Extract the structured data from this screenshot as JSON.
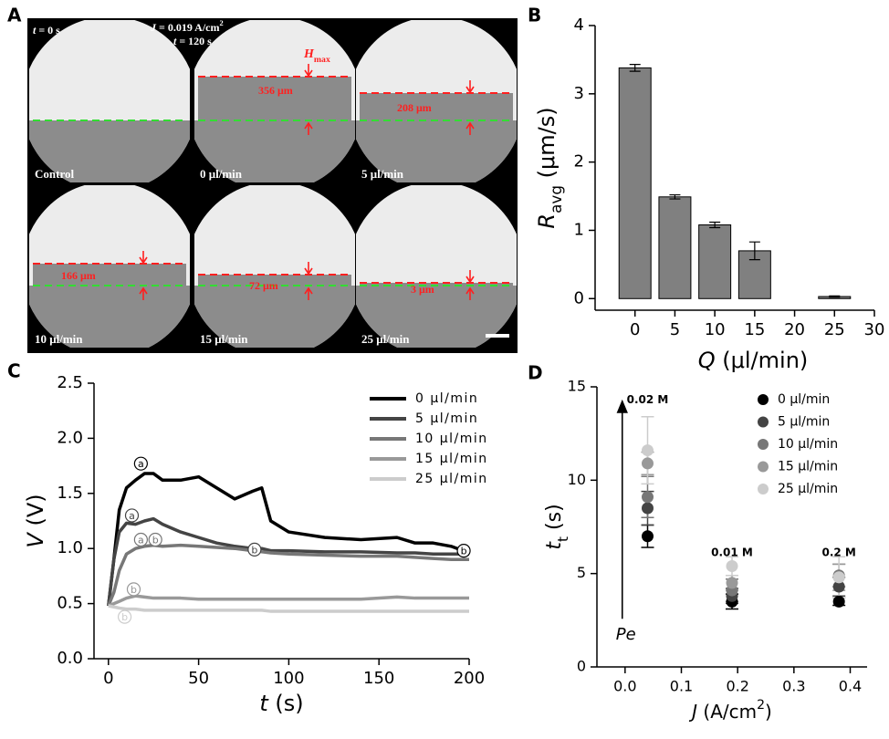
{
  "panel_labels": [
    "A",
    "B",
    "C",
    "D"
  ],
  "micrograph_panel": {
    "time_start": [
      "t",
      " = 0 s"
    ],
    "current": [
      "J",
      " = 0.019 A/cm",
      "2"
    ],
    "time_end": [
      "t",
      " = 120 s"
    ],
    "hmax": [
      "H",
      "max"
    ],
    "cells": [
      {
        "label": "Control"
      },
      {
        "label": "0 μl/min",
        "height": "356 μm"
      },
      {
        "label": "5 μl/min",
        "height": "208 μm"
      },
      {
        "label": "10 μl/min",
        "height": "166 μm"
      },
      {
        "label": "15 μl/min",
        "height": "72 μm"
      },
      {
        "label": "25 μl/min",
        "height": "3 μm"
      }
    ]
  },
  "chart_data": [
    {
      "type": "bar",
      "xlabel": [
        "Q",
        " (μl/min)"
      ],
      "ylabel": [
        "R",
        "avg",
        " (μm/s)"
      ],
      "x": [
        0,
        5,
        10,
        15,
        25
      ],
      "values": [
        3.38,
        1.49,
        1.08,
        0.7,
        0.03
      ],
      "errors": [
        0.05,
        0.03,
        0.04,
        0.13,
        0.01
      ],
      "color": "#808080",
      "xlim": [
        -5,
        30
      ],
      "ylim": [
        -0.17,
        4
      ],
      "xticks": [
        0,
        5,
        10,
        15,
        20,
        25,
        30
      ],
      "yticks": [
        0,
        1,
        2,
        3,
        4
      ]
    },
    {
      "type": "line",
      "xlabel": [
        "t",
        " (s)"
      ],
      "ylabel": [
        "V",
        " (V)"
      ],
      "x": [
        0,
        3,
        6,
        10,
        15,
        20,
        25,
        30,
        40,
        50,
        60,
        70,
        80,
        85,
        90,
        100,
        120,
        140,
        160,
        170,
        180,
        190,
        200
      ],
      "series": [
        {
          "name": "0 μl/min",
          "color": "#000000",
          "values": [
            0.48,
            0.9,
            1.35,
            1.55,
            1.62,
            1.68,
            1.68,
            1.62,
            1.62,
            1.65,
            1.55,
            1.45,
            1.52,
            1.55,
            1.25,
            1.15,
            1.1,
            1.08,
            1.1,
            1.05,
            1.05,
            1.02,
            0.96
          ]
        },
        {
          "name": "5 μl/min",
          "color": "#444444",
          "values": [
            0.48,
            0.9,
            1.15,
            1.23,
            1.22,
            1.25,
            1.27,
            1.22,
            1.15,
            1.1,
            1.05,
            1.02,
            1.0,
            1.0,
            0.98,
            0.98,
            0.97,
            0.97,
            0.96,
            0.96,
            0.95,
            0.95,
            0.95
          ]
        },
        {
          "name": "10 μl/min",
          "color": "#777777",
          "values": [
            0.48,
            0.6,
            0.8,
            0.95,
            1.0,
            1.02,
            1.03,
            1.02,
            1.03,
            1.02,
            1.01,
            1.0,
            0.98,
            0.97,
            0.96,
            0.95,
            0.94,
            0.93,
            0.93,
            0.92,
            0.91,
            0.9,
            0.9
          ]
        },
        {
          "name": "15 μl/min",
          "color": "#999999",
          "values": [
            0.48,
            0.5,
            0.52,
            0.55,
            0.57,
            0.56,
            0.55,
            0.55,
            0.55,
            0.54,
            0.54,
            0.54,
            0.54,
            0.54,
            0.54,
            0.54,
            0.54,
            0.54,
            0.56,
            0.55,
            0.55,
            0.55,
            0.55
          ]
        },
        {
          "name": "25 μl/min",
          "color": "#cccccc",
          "values": [
            0.48,
            0.47,
            0.46,
            0.45,
            0.45,
            0.44,
            0.44,
            0.44,
            0.44,
            0.44,
            0.44,
            0.44,
            0.44,
            0.44,
            0.43,
            0.43,
            0.43,
            0.43,
            0.43,
            0.43,
            0.43,
            0.43,
            0.43
          ]
        }
      ],
      "annotations": [
        {
          "text": "a",
          "x": 18,
          "y": 1.77,
          "color": "#000000"
        },
        {
          "text": "b",
          "x": 197,
          "y": 0.98,
          "color": "#000000"
        },
        {
          "text": "a",
          "x": 13,
          "y": 1.3,
          "color": "#444444"
        },
        {
          "text": "b",
          "x": 81,
          "y": 0.99,
          "color": "#444444"
        },
        {
          "text": "a",
          "x": 18,
          "y": 1.08,
          "color": "#777777"
        },
        {
          "text": "b",
          "x": 26,
          "y": 1.08,
          "color": "#777777"
        },
        {
          "text": "b",
          "x": 14,
          "y": 0.63,
          "color": "#999999"
        },
        {
          "text": "b",
          "x": 9,
          "y": 0.38,
          "color": "#cccccc"
        }
      ],
      "legend": "upper right",
      "xlim": [
        -8,
        200
      ],
      "ylim": [
        0,
        2.5
      ],
      "xticks": [
        0,
        50,
        100,
        150,
        200
      ],
      "yticks": [
        {
          "value": 0,
          "label": "0.0"
        },
        {
          "value": 0.5,
          "label": "0.5"
        },
        {
          "value": 1,
          "label": "1.0"
        },
        {
          "value": 1.5,
          "label": "1.5"
        },
        {
          "value": 2,
          "label": "2.0"
        },
        {
          "value": 2.5,
          "label": "2.5"
        }
      ]
    },
    {
      "type": "scatter",
      "xlabel": [
        "J",
        " (A/cm",
        "2",
        ")"
      ],
      "ylabel": [
        "t",
        "t",
        " (s)"
      ],
      "x": [
        0.04,
        0.19,
        0.38
      ],
      "series": [
        {
          "name": "0 μl/min",
          "color": "#000000",
          "values": [
            7.0,
            3.5,
            3.5
          ],
          "errors": [
            0.6,
            0.4,
            0.2
          ]
        },
        {
          "name": "5 μl/min",
          "color": "#444444",
          "values": [
            8.5,
            3.8,
            4.3
          ],
          "errors": [
            0.9,
            0.4,
            0.5
          ]
        },
        {
          "name": "10 μl/min",
          "color": "#777777",
          "values": [
            9.1,
            4.1,
            4.9
          ],
          "errors": [
            1.1,
            0.6,
            0.6
          ]
        },
        {
          "name": "15 μl/min",
          "color": "#999999",
          "values": [
            10.9,
            4.5,
            4.8
          ],
          "errors": [
            0.6,
            0.4,
            0.7
          ]
        },
        {
          "name": "25 μl/min",
          "color": "#cccccc",
          "values": [
            11.6,
            5.4,
            4.8
          ],
          "errors": [
            1.8,
            0.5,
            1.1
          ]
        }
      ],
      "annotations": [
        {
          "text": "0.02 M",
          "x": 0.04,
          "y": 14.3
        },
        {
          "text": "0.01 M",
          "x": 0.19,
          "y": 6.1
        },
        {
          "text": "0.2 M",
          "x": 0.38,
          "y": 6.1
        },
        {
          "text": "Pe",
          "x": -0.005,
          "y": 1.7
        }
      ],
      "legend": "upper right",
      "xlim": [
        -0.05,
        0.43
      ],
      "ylim": [
        0,
        15
      ],
      "xticks": [
        {
          "value": 0,
          "label": "0.0"
        },
        {
          "value": 0.1,
          "label": "0.1"
        },
        {
          "value": 0.2,
          "label": "0.2"
        },
        {
          "value": 0.3,
          "label": "0.3"
        },
        {
          "value": 0.4,
          "label": "0.4"
        }
      ],
      "yticks": [
        0,
        5,
        10,
        15
      ]
    }
  ]
}
